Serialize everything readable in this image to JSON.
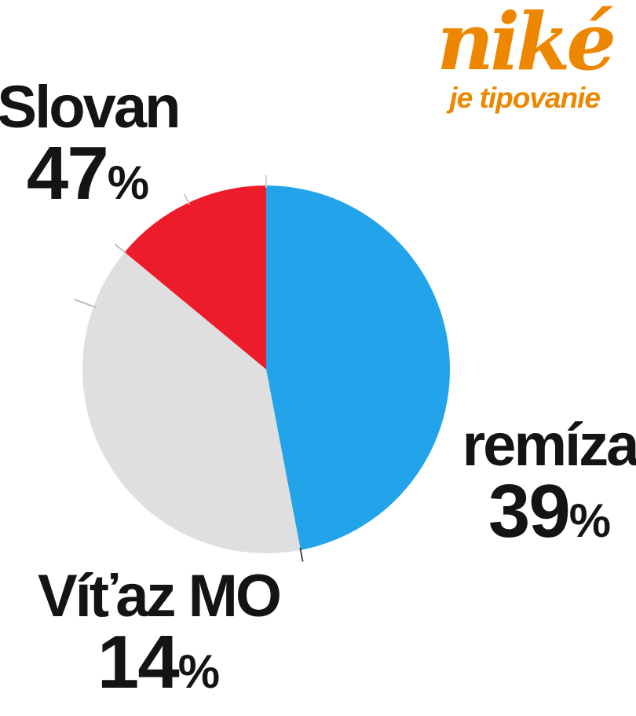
{
  "page": {
    "background": "#FFFFFF",
    "text_color": "#141414"
  },
  "logo": {
    "brand": "niké",
    "tagline": "je tipovanie",
    "color": "#EE8700"
  },
  "chart_data": {
    "type": "pie",
    "title": "",
    "start_angle_deg": 0,
    "direction": "clockwise",
    "percent_sign": "%",
    "legend_position": "outside-labels",
    "slices": [
      {
        "label": "Slovan",
        "value": 47,
        "color": "#23A3EA"
      },
      {
        "label": "remíza",
        "value": 39,
        "color": "#DFDFDF"
      },
      {
        "label": "Víťaz MO",
        "value": 14,
        "color": "#ED1C2B"
      }
    ],
    "tick_marks": [
      {
        "angle_deg": 0,
        "length": 13,
        "color": "#CFCFCF"
      },
      {
        "angle_deg": 169.2,
        "length": 15,
        "color": "#3C3C3C"
      },
      {
        "angle_deg": 290,
        "length": 26,
        "color": "#AEB4C4"
      },
      {
        "angle_deg": 309.6,
        "length": 16,
        "color": "#B4B9C6"
      },
      {
        "angle_deg": 335,
        "length": 13,
        "color": "#C4CBC4"
      }
    ]
  }
}
